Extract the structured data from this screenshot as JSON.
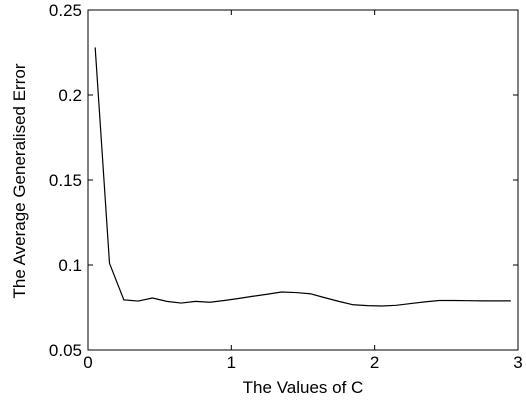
{
  "chart_data": {
    "type": "line",
    "title": "",
    "xlabel": "The Values of C",
    "ylabel": "The Average Generalised Error",
    "xlim": [
      0,
      3
    ],
    "ylim": [
      0.05,
      0.25
    ],
    "x_ticks": [
      0,
      1,
      2,
      3
    ],
    "y_ticks": [
      0.05,
      0.1,
      0.15,
      0.2,
      0.25
    ],
    "x_tick_labels": [
      "0",
      "1",
      "2",
      "3"
    ],
    "y_tick_labels": [
      "0.05",
      "0.1",
      "0.15",
      "0.2",
      "0.25"
    ],
    "grid": false,
    "legend": "none",
    "line_color": "#000000",
    "series": [
      {
        "x": [
          0.05,
          0.15,
          0.25,
          0.35,
          0.45,
          0.55,
          0.65,
          0.75,
          0.85,
          0.95,
          1.05,
          1.15,
          1.25,
          1.35,
          1.45,
          1.55,
          1.65,
          1.75,
          1.85,
          1.95,
          2.05,
          2.15,
          2.25,
          2.35,
          2.45,
          2.55,
          2.65,
          2.75,
          2.85,
          2.95
        ],
        "y": [
          0.228,
          0.101,
          0.0795,
          0.0788,
          0.0806,
          0.0786,
          0.0776,
          0.0786,
          0.0781,
          0.0791,
          0.0803,
          0.0816,
          0.0828,
          0.0841,
          0.0838,
          0.0831,
          0.0808,
          0.0786,
          0.0766,
          0.0761,
          0.0759,
          0.0763,
          0.0773,
          0.0783,
          0.0791,
          0.0791,
          0.079,
          0.0789,
          0.0789,
          0.0789
        ]
      }
    ]
  }
}
